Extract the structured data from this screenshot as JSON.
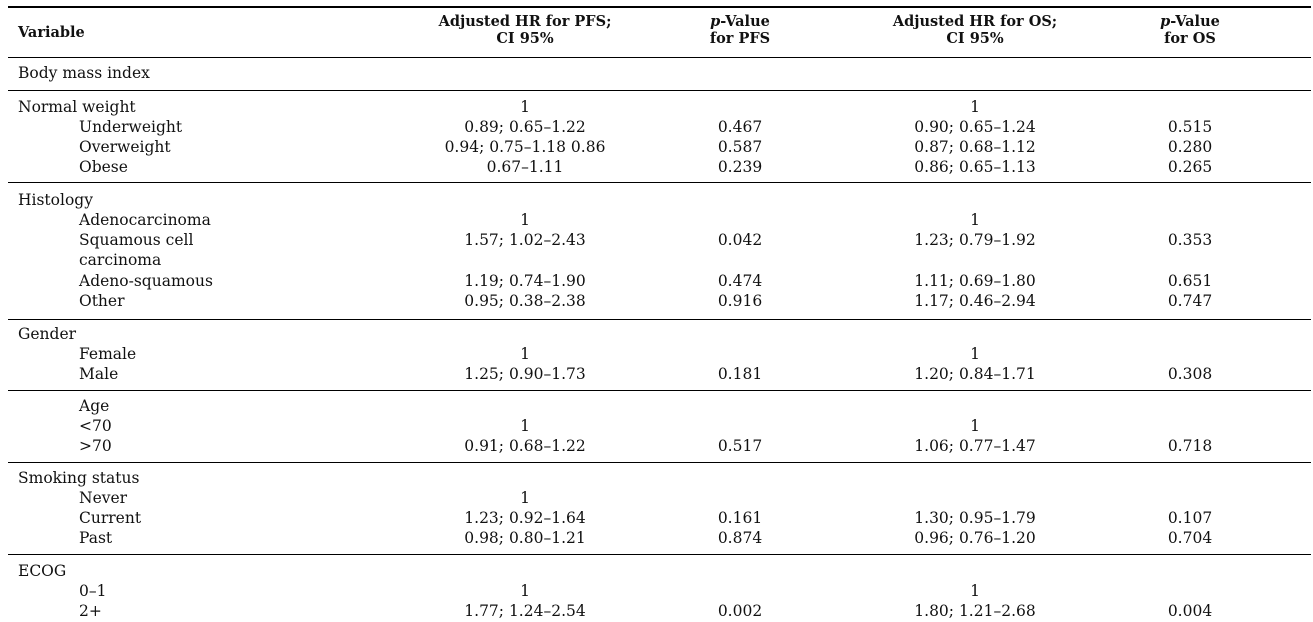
{
  "header": {
    "variable": "Variable",
    "pfs_hr_line1": "Adjusted HR for PFS;",
    "pfs_hr_line2": "CI 95%",
    "pfs_p_italic": "p",
    "pfs_p_rest": "-Value",
    "pfs_p_line2": "for PFS",
    "os_hr_line1": "Adjusted HR for OS;",
    "os_hr_line2": "CI 95%",
    "os_p_italic": "p",
    "os_p_rest": "-Value",
    "os_p_line2": "for OS"
  },
  "rows": [
    {
      "variable": "Body mass index",
      "indent": false,
      "hr_pfs": "",
      "p_pfs": "",
      "hr_os": "",
      "p_os": ""
    },
    {
      "variable": "Normal weight",
      "indent": false,
      "hr_pfs": "1",
      "p_pfs": "",
      "hr_os": "1",
      "p_os": ""
    },
    {
      "variable": "Underweight",
      "indent": true,
      "hr_pfs": "0.89; 0.65–1.22",
      "p_pfs": "0.467",
      "hr_os": "0.90; 0.65–1.24",
      "p_os": "0.515"
    },
    {
      "variable": "Overweight",
      "indent": true,
      "hr_pfs": "0.94; 0.75–1.18 0.86",
      "p_pfs": "0.587",
      "hr_os": "0.87; 0.68–1.12",
      "p_os": "0.280"
    },
    {
      "variable": "Obese",
      "indent": true,
      "hr_pfs": "0.67–1.11",
      "p_pfs": "0.239",
      "hr_os": "0.86; 0.65–1.13",
      "p_os": "0.265"
    },
    {
      "variable": "Histology",
      "indent": false,
      "hr_pfs": "",
      "p_pfs": "",
      "hr_os": "",
      "p_os": ""
    },
    {
      "variable": "Adenocarcinoma",
      "indent": true,
      "hr_pfs": "1",
      "p_pfs": "",
      "hr_os": "1",
      "p_os": ""
    },
    {
      "variable": "Squamous cell",
      "indent": true,
      "hr_pfs": "1.57; 1.02–2.43",
      "p_pfs": "0.042",
      "hr_os": "1.23; 0.79–1.92",
      "p_os": "0.353"
    },
    {
      "variable": "carcinoma",
      "indent": true,
      "hr_pfs": "",
      "p_pfs": "",
      "hr_os": "",
      "p_os": ""
    },
    {
      "variable": "Adeno-squamous",
      "indent": true,
      "hr_pfs": "1.19; 0.74–1.90",
      "p_pfs": "0.474",
      "hr_os": "1.11; 0.69–1.80",
      "p_os": "0.651"
    },
    {
      "variable": "Other",
      "indent": true,
      "hr_pfs": "0.95; 0.38–2.38",
      "p_pfs": "0.916",
      "hr_os": "1.17; 0.46–2.94",
      "p_os": "0.747"
    },
    {
      "variable": "Gender",
      "indent": false,
      "hr_pfs": "",
      "p_pfs": "",
      "hr_os": "",
      "p_os": ""
    },
    {
      "variable": "Female",
      "indent": true,
      "hr_pfs": "1",
      "p_pfs": "",
      "hr_os": "1",
      "p_os": ""
    },
    {
      "variable": "Male",
      "indent": true,
      "hr_pfs": "1.25; 0.90–1.73",
      "p_pfs": "0.181",
      "hr_os": "1.20; 0.84–1.71",
      "p_os": "0.308"
    },
    {
      "variable": "Age",
      "indent": true,
      "hr_pfs": "",
      "p_pfs": "",
      "hr_os": "",
      "p_os": ""
    },
    {
      "variable": "<70",
      "indent": true,
      "hr_pfs": "1",
      "p_pfs": "",
      "hr_os": "1",
      "p_os": ""
    },
    {
      "variable": ">70",
      "indent": true,
      "hr_pfs": "0.91; 0.68–1.22",
      "p_pfs": "0.517",
      "hr_os": "1.06; 0.77–1.47",
      "p_os": "0.718"
    },
    {
      "variable": "Smoking status",
      "indent": false,
      "hr_pfs": "",
      "p_pfs": "",
      "hr_os": "",
      "p_os": ""
    },
    {
      "variable": "Never",
      "indent": true,
      "hr_pfs": "1",
      "p_pfs": "",
      "hr_os": "",
      "p_os": ""
    },
    {
      "variable": "Current",
      "indent": true,
      "hr_pfs": "1.23; 0.92–1.64",
      "p_pfs": "0.161",
      "hr_os": "1.30; 0.95–1.79",
      "p_os": "0.107"
    },
    {
      "variable": "Past",
      "indent": true,
      "hr_pfs": "0.98; 0.80–1.21",
      "p_pfs": "0.874",
      "hr_os": "0.96; 0.76–1.20",
      "p_os": "0.704"
    },
    {
      "variable": "ECOG",
      "indent": false,
      "hr_pfs": "",
      "p_pfs": "",
      "hr_os": "",
      "p_os": ""
    },
    {
      "variable": "0–1",
      "indent": true,
      "hr_pfs": "1",
      "p_pfs": "",
      "hr_os": "1",
      "p_os": ""
    },
    {
      "variable": "2+",
      "indent": true,
      "hr_pfs": "1.77; 1.24–2.54",
      "p_pfs": "0.002",
      "hr_os": "1.80; 1.21–2.68",
      "p_os": "0.004"
    }
  ]
}
